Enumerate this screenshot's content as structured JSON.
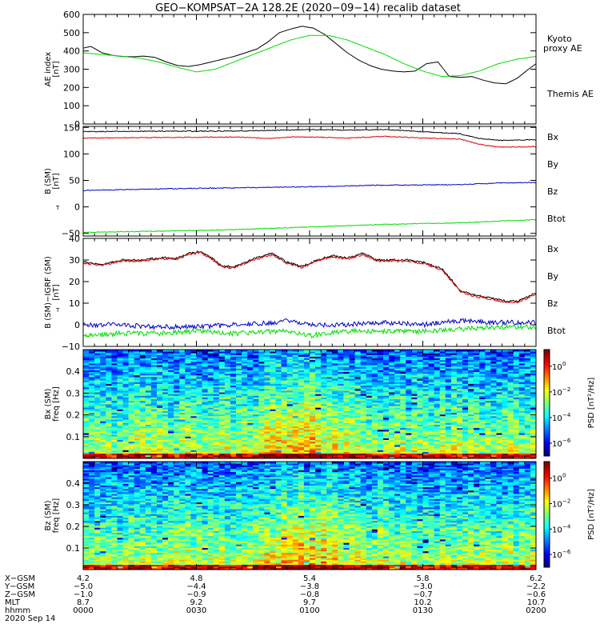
{
  "title": "GEO−KOMPSAT−2A 128.2E (2020−09−14) recalib dataset",
  "chart_data": [
    {
      "type": "line",
      "ylabel": [
        "AE index",
        "[nT]"
      ],
      "ylim": [
        0,
        600
      ],
      "yticks": [
        "0",
        "100",
        "200",
        "300",
        "400",
        "500",
        "600"
      ],
      "ytick_values": [
        0,
        100,
        200,
        300,
        400,
        500,
        600
      ],
      "legend": [
        {
          "label": "Kyoto",
          "color": "#00dd00"
        },
        {
          "label": "proxy AE",
          "color": "#00dd00"
        },
        {
          "label": "Themis AE",
          "color": "#000000"
        }
      ],
      "series": [
        {
          "name": "Themis AE",
          "color": "#000000",
          "t": [
            0,
            2,
            5,
            8,
            10,
            13,
            16,
            19,
            22,
            25,
            28,
            31,
            34,
            37,
            40,
            43,
            46,
            49,
            52,
            55,
            58,
            61,
            64,
            67,
            70,
            73,
            76,
            79,
            82,
            85,
            88,
            91,
            94,
            97,
            100,
            103,
            106,
            109,
            112,
            115,
            118,
            120
          ],
          "v": [
            415,
            425,
            390,
            375,
            370,
            368,
            372,
            365,
            340,
            320,
            315,
            325,
            340,
            355,
            370,
            390,
            410,
            450,
            500,
            520,
            535,
            525,
            490,
            440,
            390,
            350,
            320,
            300,
            290,
            285,
            290,
            330,
            340,
            260,
            255,
            260,
            240,
            225,
            220,
            250,
            300,
            330
          ]
        },
        {
          "name": "Kyoto proxy AE",
          "color": "#00dd00",
          "t": [
            0,
            5,
            10,
            15,
            20,
            25,
            30,
            35,
            40,
            45,
            50,
            55,
            60,
            65,
            70,
            75,
            80,
            85,
            90,
            95,
            100,
            105,
            110,
            115,
            120
          ],
          "v": [
            390,
            380,
            372,
            360,
            340,
            310,
            285,
            300,
            340,
            380,
            420,
            460,
            485,
            485,
            460,
            420,
            380,
            330,
            290,
            260,
            265,
            290,
            330,
            355,
            370
          ]
        }
      ]
    },
    {
      "type": "line",
      "ylabel": [
        "B  (SM)",
        "[nT]"
      ],
      "ylim": [
        -55,
        152
      ],
      "yticks": [
        "−50",
        "0",
        "50",
        "100",
        "150"
      ],
      "ytick_values": [
        -50,
        0,
        50,
        100,
        150
      ],
      "legend": [
        {
          "label": "Bx",
          "color": "#0000cc"
        },
        {
          "label": "By",
          "color": "#00dd00"
        },
        {
          "label": "Bz",
          "color": "#dd0000"
        },
        {
          "label": "Btot",
          "color": "#000000"
        }
      ],
      "series": [
        {
          "name": "Btot",
          "color": "#000000",
          "t": [
            0,
            20,
            40,
            60,
            70,
            80,
            90,
            100,
            105,
            110,
            115,
            120
          ],
          "v": [
            142,
            143,
            143,
            146,
            145,
            146,
            142,
            138,
            129,
            126,
            126,
            127
          ]
        },
        {
          "name": "Bz",
          "color": "#dd0000",
          "t": [
            0,
            20,
            40,
            50,
            55,
            60,
            70,
            80,
            90,
            100,
            105,
            110,
            115,
            120
          ],
          "v": [
            130,
            131,
            132,
            129,
            132,
            132,
            130,
            133,
            130,
            128,
            118,
            113,
            113,
            114
          ]
        },
        {
          "name": "Bx",
          "color": "#0000cc",
          "t": [
            0,
            20,
            40,
            60,
            80,
            100,
            110,
            120
          ],
          "v": [
            31,
            34,
            36,
            38,
            41,
            42,
            45,
            46
          ]
        },
        {
          "name": "By",
          "color": "#00dd00",
          "t": [
            0,
            20,
            40,
            60,
            80,
            100,
            110,
            120
          ],
          "v": [
            -48,
            -46,
            -43,
            -38,
            -33,
            -30,
            -27,
            -24
          ]
        }
      ]
    },
    {
      "type": "line",
      "ylabel": [
        "B (SM)−IGRF (SM)",
        "[nT]"
      ],
      "ylim": [
        -10,
        40
      ],
      "yticks": [
        "−10",
        "0",
        "10",
        "20",
        "30",
        "40"
      ],
      "ytick_values": [
        -10,
        0,
        10,
        20,
        30,
        40
      ],
      "legend": [
        {
          "label": "Bx",
          "color": "#0000cc"
        },
        {
          "label": "By",
          "color": "#00dd00"
        },
        {
          "label": "Bz",
          "color": "#dd0000"
        },
        {
          "label": "Btot",
          "color": "#000000"
        }
      ],
      "series": [
        {
          "name": "Btot",
          "color": "#000000",
          "t": [
            0,
            5,
            10,
            15,
            20,
            25,
            28,
            31,
            34,
            37,
            40,
            43,
            46,
            50,
            54,
            58,
            62,
            66,
            70,
            74,
            78,
            82,
            86,
            90,
            95,
            98,
            100,
            103,
            106,
            109,
            112,
            115,
            118,
            120
          ],
          "v": [
            29,
            28,
            30,
            30,
            31,
            31,
            33,
            34,
            31,
            27,
            27,
            29,
            31,
            33,
            29,
            27,
            30,
            32,
            31,
            33,
            30,
            30,
            30,
            29,
            26,
            20,
            16,
            14,
            13,
            12,
            11,
            11,
            13,
            15
          ]
        },
        {
          "name": "Bz",
          "color": "#dd0000",
          "t": [
            0,
            5,
            10,
            15,
            20,
            25,
            28,
            31,
            34,
            37,
            40,
            43,
            46,
            50,
            54,
            58,
            62,
            66,
            70,
            74,
            78,
            82,
            86,
            90,
            95,
            98,
            100,
            103,
            106,
            109,
            112,
            115,
            118,
            120
          ],
          "v": [
            28.5,
            27.5,
            29.5,
            29.5,
            30.5,
            30.5,
            32.5,
            33.5,
            30.5,
            26.5,
            26.5,
            28.5,
            30.5,
            32.5,
            28.5,
            26.5,
            29.5,
            31.5,
            30.5,
            32.5,
            29.5,
            29.5,
            29.5,
            28.5,
            25.5,
            19.5,
            15.5,
            13.5,
            12.5,
            11.5,
            10.5,
            10.5,
            12.5,
            14.5
          ]
        },
        {
          "name": "Bx",
          "color": "#0000cc",
          "t": [
            0,
            10,
            20,
            30,
            40,
            50,
            55,
            60,
            70,
            80,
            90,
            100,
            110,
            120
          ],
          "v": [
            0,
            0,
            -1,
            -1,
            0,
            1,
            2,
            0,
            0,
            1,
            0,
            2,
            1,
            1
          ]
        },
        {
          "name": "By",
          "color": "#00dd00",
          "t": [
            0,
            10,
            20,
            30,
            40,
            50,
            55,
            60,
            70,
            80,
            90,
            100,
            110,
            120
          ],
          "v": [
            -5,
            -4,
            -4,
            -3,
            -4,
            -3,
            -3,
            -5,
            -3,
            -3,
            -3,
            -2,
            -1,
            -1
          ]
        }
      ]
    },
    {
      "type": "heatmap",
      "ylabel": [
        "Bx (SM)",
        "freq [Hz]"
      ],
      "ylim": [
        0,
        0.5
      ],
      "yticks": [
        "0.1",
        "0.2",
        "0.3",
        "0.4"
      ],
      "ytick_values": [
        0.1,
        0.2,
        0.3,
        0.4
      ],
      "colorbar_label": "PSD [nT²/Hz]",
      "colorbar_ticks": [
        {
          "base": "10",
          "exp": "0",
          "value": 0
        },
        {
          "base": "10",
          "exp": "−2",
          "value": -2
        },
        {
          "base": "10",
          "exp": "−4",
          "value": -4
        },
        {
          "base": "10",
          "exp": "−6",
          "value": -6
        }
      ],
      "colorbar_range": [
        -7,
        1.3
      ]
    },
    {
      "type": "heatmap",
      "ylabel": [
        "Bz (SM)",
        "freq [Hz]"
      ],
      "ylim": [
        0,
        0.5
      ],
      "yticks": [
        "0.1",
        "0.2",
        "0.3",
        "0.4"
      ],
      "ytick_values": [
        0.1,
        0.2,
        0.3,
        0.4
      ],
      "colorbar_label": "PSD [nT²/Hz]",
      "colorbar_ticks": [
        {
          "base": "10",
          "exp": "0",
          "value": 0
        },
        {
          "base": "10",
          "exp": "−2",
          "value": -2
        },
        {
          "base": "10",
          "exp": "−4",
          "value": -4
        },
        {
          "base": "10",
          "exp": "−6",
          "value": -6
        }
      ],
      "colorbar_range": [
        -7,
        1.3
      ]
    }
  ],
  "axis_table": {
    "row_labels": [
      "X−GSM",
      "Y−GSM",
      "Z−GSM",
      "MLT",
      "hhmm",
      "2020 Sep 14"
    ],
    "time_values": [
      0,
      30,
      60,
      90,
      120
    ],
    "columns": [
      [
        "4.2",
        "−5.0",
        "−1.0",
        "8.7",
        "0000"
      ],
      [
        "4.8",
        "−4.4",
        "−0.9",
        "9.2",
        "0030"
      ],
      [
        "5.4",
        "−3.8",
        "−0.8",
        "9.7",
        "0100"
      ],
      [
        "5.8",
        "−3.0",
        "−0.7",
        "10.2",
        "0130"
      ],
      [
        "6.2",
        "−2.2",
        "−0.6",
        "10.7",
        "0200"
      ]
    ]
  }
}
